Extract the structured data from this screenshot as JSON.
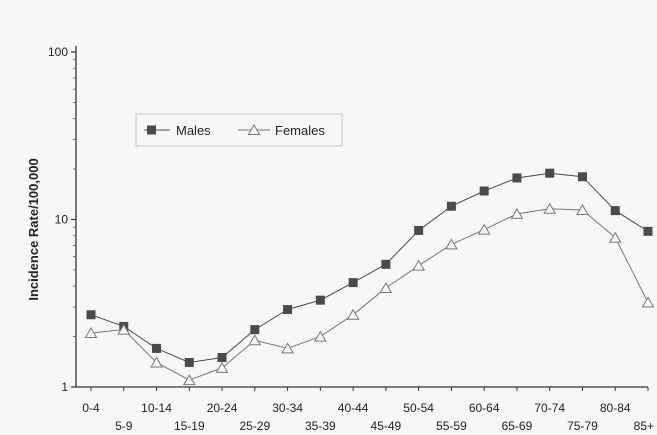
{
  "chart_data": {
    "type": "line",
    "ylabel": "Incidence Rate/100,000",
    "yscale": "log",
    "ylim": [
      1,
      100
    ],
    "yticks": [
      "1",
      "10",
      "100"
    ],
    "categories": [
      "0-4",
      "5-9",
      "10-14",
      "15-19",
      "20-24",
      "25-29",
      "30-34",
      "35-39",
      "40-44",
      "45-49",
      "50-54",
      "55-59",
      "60-64",
      "65-69",
      "70-74",
      "75-79",
      "80-84",
      "85+"
    ],
    "x_tick_labels": [
      "0-4",
      "5-9",
      "10-14",
      "15-19",
      "20-24",
      "25-29",
      "30-34",
      "35-39",
      "40-44",
      "45-49",
      "50-54",
      "55-59",
      "60-64",
      "65-69",
      "70-74",
      "75-79",
      "80-84",
      "85+"
    ],
    "legend": {
      "position": "top-left"
    },
    "series": [
      {
        "name": "Males",
        "marker": "square",
        "color": "#4a4a4a",
        "values": [
          2.7,
          2.3,
          1.7,
          1.4,
          1.5,
          2.2,
          2.9,
          3.3,
          4.2,
          5.4,
          8.6,
          12.0,
          14.8,
          17.7,
          18.9,
          18.0,
          11.3,
          8.5
        ]
      },
      {
        "name": "Females",
        "marker": "triangle",
        "color": "#777777",
        "values": [
          2.1,
          2.2,
          1.4,
          1.1,
          1.3,
          1.9,
          1.7,
          2.0,
          2.7,
          3.9,
          5.3,
          7.1,
          8.7,
          10.8,
          11.6,
          11.4,
          7.8,
          3.2
        ]
      }
    ]
  }
}
